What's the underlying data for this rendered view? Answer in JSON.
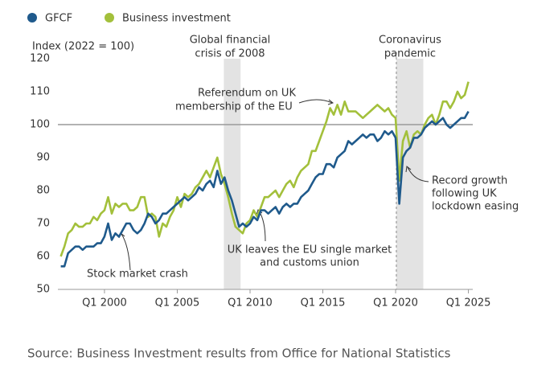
{
  "chart_data": {
    "type": "line",
    "y_axis_label": "Index (2022 = 100)",
    "source": "Source: Business Investment results from Office for National Statistics",
    "annotations": {
      "gfc": [
        "Global financial",
        "crisis of 2008"
      ],
      "covid": [
        "Coronavirus",
        "pandemic"
      ],
      "referendum": [
        "Referendum on UK",
        "membership of the EU"
      ],
      "crash": [
        "Stock market crash"
      ],
      "brexit": [
        "UK leaves the EU single market",
        "and customs union"
      ],
      "recovery": [
        "Record growth",
        "following UK",
        "lockdown easing"
      ]
    },
    "x": [
      1997,
      1997.25,
      1997.5,
      1997.75,
      1998,
      1998.25,
      1998.5,
      1998.75,
      1999,
      1999.25,
      1999.5,
      1999.75,
      2000,
      2000.25,
      2000.5,
      2000.75,
      2001,
      2001.25,
      2001.5,
      2001.75,
      2002,
      2002.25,
      2002.5,
      2002.75,
      2003,
      2003.25,
      2003.5,
      2003.75,
      2004,
      2004.25,
      2004.5,
      2004.75,
      2005,
      2005.25,
      2005.5,
      2005.75,
      2006,
      2006.25,
      2006.5,
      2006.75,
      2007,
      2007.25,
      2007.5,
      2007.75,
      2008,
      2008.25,
      2008.5,
      2008.75,
      2009,
      2009.25,
      2009.5,
      2009.75,
      2010,
      2010.25,
      2010.5,
      2010.75,
      2011,
      2011.25,
      2011.5,
      2011.75,
      2012,
      2012.25,
      2012.5,
      2012.75,
      2013,
      2013.25,
      2013.5,
      2013.75,
      2014,
      2014.25,
      2014.5,
      2014.75,
      2015,
      2015.25,
      2015.5,
      2015.75,
      2016,
      2016.25,
      2016.5,
      2016.75,
      2017,
      2017.25,
      2017.5,
      2017.75,
      2018,
      2018.25,
      2018.5,
      2018.75,
      2019,
      2019.25,
      2019.5,
      2019.75,
      2020,
      2020.25,
      2020.5,
      2020.75,
      2021,
      2021.25,
      2021.5,
      2021.75,
      2022,
      2022.25,
      2022.5,
      2022.75,
      2023,
      2023.25,
      2023.5,
      2023.75,
      2024,
      2024.25,
      2024.5,
      2024.75,
      2025
    ],
    "series": [
      {
        "name": "GFCF",
        "color": "#1f5a8c",
        "values": [
          57,
          57,
          61,
          62,
          63,
          63,
          62,
          63,
          63,
          63,
          64,
          64,
          66,
          70,
          65,
          67,
          66,
          68,
          70,
          70,
          68,
          67,
          68,
          70,
          73,
          72,
          70,
          71,
          73,
          73,
          74,
          75,
          76,
          77,
          78,
          77,
          78,
          79,
          81,
          80,
          82,
          83,
          81,
          86,
          82,
          84,
          80,
          77,
          73,
          69,
          70,
          69,
          70,
          72,
          71,
          74,
          74,
          73,
          74,
          75,
          73,
          75,
          76,
          75,
          76,
          76,
          78,
          79,
          80,
          82,
          84,
          85,
          85,
          88,
          88,
          87,
          90,
          91,
          92,
          95,
          94,
          95,
          96,
          97,
          96,
          97,
          97,
          95,
          96,
          98,
          97,
          98,
          96,
          76,
          90,
          92,
          93,
          96,
          96,
          97,
          99,
          100,
          101,
          100,
          101,
          102,
          100,
          99,
          100,
          101,
          102,
          102,
          104
        ]
      },
      {
        "name": "Business investment",
        "color": "#a3c03b",
        "values": [
          60,
          63,
          67,
          68,
          70,
          69,
          69,
          70,
          70,
          72,
          71,
          73,
          74,
          78,
          73,
          76,
          75,
          76,
          76,
          74,
          74,
          75,
          78,
          78,
          72,
          73,
          72,
          66,
          70,
          69,
          72,
          74,
          78,
          75,
          79,
          78,
          79,
          81,
          82,
          84,
          86,
          84,
          87,
          90,
          85,
          82,
          78,
          73,
          69,
          68,
          67,
          70,
          71,
          74,
          72,
          75,
          78,
          78,
          79,
          80,
          78,
          80,
          82,
          83,
          81,
          84,
          86,
          87,
          88,
          92,
          92,
          95,
          98,
          101,
          105,
          103,
          106,
          103,
          107,
          104,
          104,
          104,
          103,
          102,
          103,
          104,
          105,
          106,
          105,
          104,
          105,
          103,
          102,
          83,
          95,
          98,
          93,
          97,
          98,
          97,
          100,
          102,
          103,
          100,
          103,
          107,
          107,
          105,
          107,
          110,
          108,
          109,
          113
        ]
      }
    ],
    "xlim": [
      1996.8,
      2025.3
    ],
    "xticks": [
      {
        "value": 2000,
        "label": "Q1 2000"
      },
      {
        "value": 2005,
        "label": "Q1 2005"
      },
      {
        "value": 2010,
        "label": "Q1 2010"
      },
      {
        "value": 2015,
        "label": "Q1 2015"
      },
      {
        "value": 2020,
        "label": "Q1 2020"
      },
      {
        "value": 2025,
        "label": "Q1 2025"
      }
    ],
    "ylim": [
      50,
      120
    ],
    "yticks": [
      50,
      60,
      70,
      80,
      90,
      100,
      110,
      120
    ],
    "reference_line": 100,
    "shaded_periods": [
      [
        2008.2,
        2009.35
      ],
      [
        2020.05,
        2021.9
      ]
    ]
  }
}
